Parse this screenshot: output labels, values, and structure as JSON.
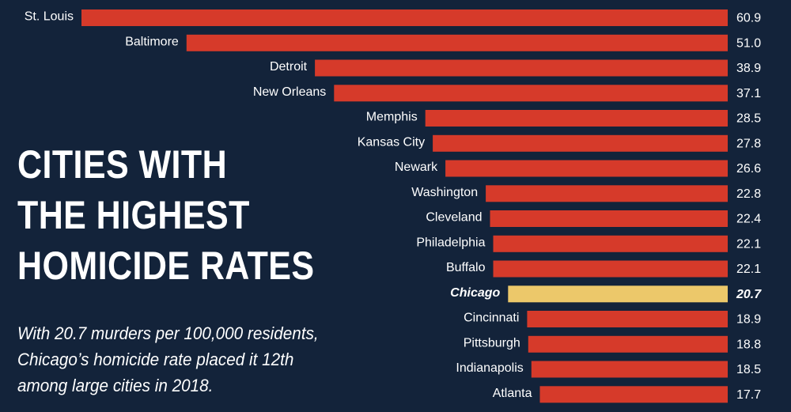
{
  "headline": {
    "lines": [
      "CITIES WITH",
      "THE HIGHEST",
      "HOMICIDE RATES"
    ]
  },
  "subtitle": {
    "lines": [
      "With 20.7 murders per 100,000 residents,",
      "Chicago’s homicide rate placed it 12th",
      "among large cities in 2018."
    ]
  },
  "colors": {
    "background": "#13233a",
    "bar": "#d63a2a",
    "highlight_bar": "#ecc86a",
    "text": "#ffffff"
  },
  "chart_data": {
    "type": "bar",
    "orientation": "horizontal",
    "title": "CITIES WITH THE HIGHEST HOMICIDE RATES",
    "unit": "murders per 100,000 residents",
    "highlight": "Chicago",
    "categories": [
      "St. Louis",
      "Baltimore",
      "Detroit",
      "New Orleans",
      "Memphis",
      "Kansas City",
      "Newark",
      "Washington",
      "Cleveland",
      "Philadelphia",
      "Buffalo",
      "Chicago",
      "Cincinnati",
      "Pittsburgh",
      "Indianapolis",
      "Atlanta"
    ],
    "values": [
      60.9,
      51.0,
      38.9,
      37.1,
      28.5,
      27.8,
      26.6,
      22.8,
      22.4,
      22.1,
      22.1,
      20.7,
      18.9,
      18.8,
      18.5,
      17.7
    ],
    "value_labels": [
      "60.9",
      "51.0",
      "38.9",
      "37.1",
      "28.5",
      "27.8",
      "26.6",
      "22.8",
      "22.4",
      "22.1",
      "22.1",
      "20.7",
      "18.9",
      "18.8",
      "18.5",
      "17.7"
    ],
    "xlim": [
      0,
      60.9
    ]
  }
}
